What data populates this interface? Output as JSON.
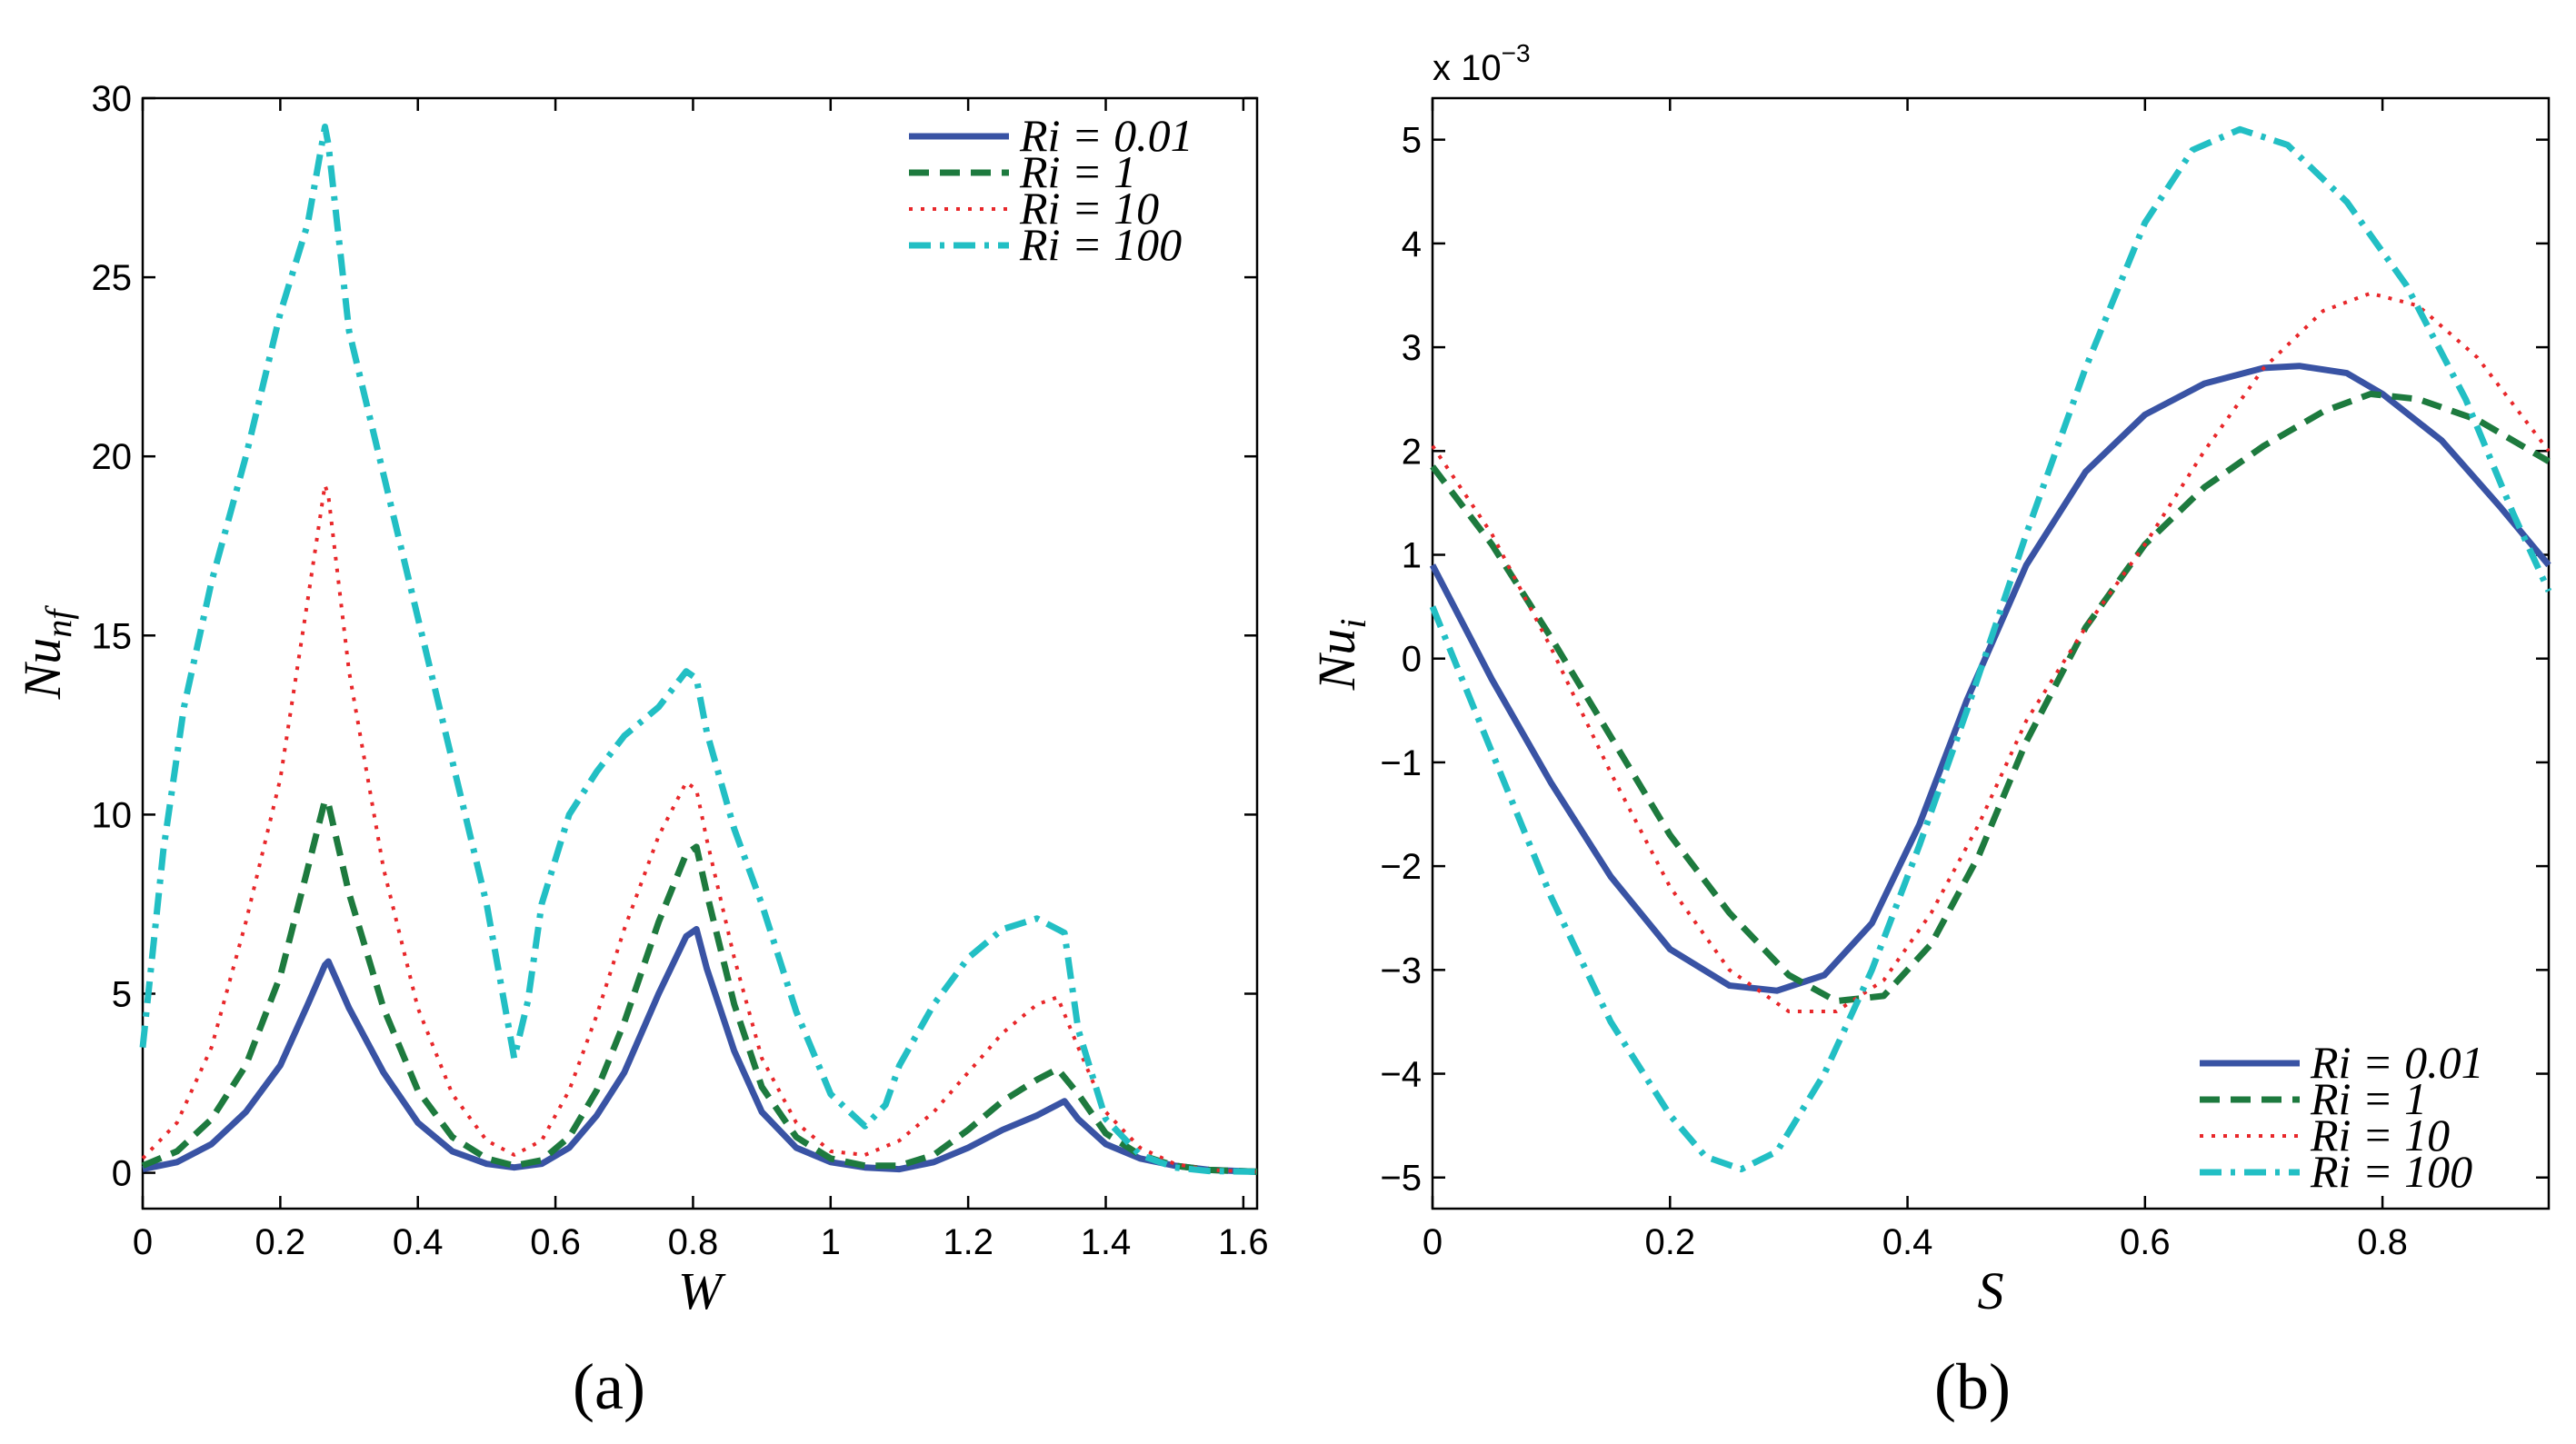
{
  "chart_data": [
    {
      "type": "line",
      "id": "a",
      "caption": "(a)",
      "xlabel": "W",
      "ylabel_main": "Nu",
      "ylabel_sub": "nf",
      "xlim": [
        0,
        1.62
      ],
      "ylim": [
        -1,
        30
      ],
      "xticks": [
        0,
        0.2,
        0.4,
        0.6,
        0.8,
        1,
        1.2,
        1.4,
        1.6
      ],
      "xtick_labels": [
        "0",
        "0.2",
        "0.4",
        "0.6",
        "0.8",
        "1",
        "1.2",
        "1.4",
        "1.6"
      ],
      "yticks": [
        0,
        5,
        10,
        15,
        20,
        25,
        30
      ],
      "ytick_labels": [
        "0",
        "5",
        "10",
        "15",
        "20",
        "25",
        "30"
      ],
      "legend_position": "top-right",
      "series": [
        {
          "name": "Ri = 0.01",
          "color": "#3953a4",
          "dash": "solid",
          "x": [
            0,
            0.05,
            0.1,
            0.15,
            0.2,
            0.24,
            0.265,
            0.27,
            0.3,
            0.35,
            0.4,
            0.45,
            0.5,
            0.54,
            0.58,
            0.62,
            0.66,
            0.7,
            0.75,
            0.79,
            0.805,
            0.82,
            0.86,
            0.9,
            0.95,
            1,
            1.05,
            1.1,
            1.15,
            1.2,
            1.25,
            1.3,
            1.34,
            1.36,
            1.4,
            1.45,
            1.5,
            1.55,
            1.62
          ],
          "y": [
            0.1,
            0.3,
            0.8,
            1.7,
            3,
            4.7,
            5.8,
            5.9,
            4.6,
            2.8,
            1.4,
            0.6,
            0.25,
            0.15,
            0.25,
            0.7,
            1.6,
            2.8,
            5,
            6.6,
            6.8,
            5.7,
            3.4,
            1.7,
            0.7,
            0.3,
            0.15,
            0.1,
            0.3,
            0.7,
            1.2,
            1.6,
            2,
            1.5,
            0.8,
            0.4,
            0.2,
            0.08,
            0.03
          ]
        },
        {
          "name": "Ri = 1",
          "color": "#1d7a3e",
          "dash": "dashed",
          "x": [
            0,
            0.05,
            0.1,
            0.15,
            0.2,
            0.24,
            0.265,
            0.27,
            0.3,
            0.35,
            0.4,
            0.45,
            0.5,
            0.54,
            0.58,
            0.62,
            0.66,
            0.7,
            0.75,
            0.79,
            0.805,
            0.82,
            0.86,
            0.9,
            0.95,
            1,
            1.05,
            1.1,
            1.15,
            1.2,
            1.25,
            1.3,
            1.33,
            1.36,
            1.4,
            1.45,
            1.5,
            1.55,
            1.62
          ],
          "y": [
            0.2,
            0.6,
            1.5,
            3,
            5.5,
            8.5,
            10.4,
            10.3,
            7.8,
            4.6,
            2.3,
            1,
            0.4,
            0.2,
            0.35,
            1,
            2.3,
            4.2,
            7,
            8.9,
            9.1,
            7.8,
            4.7,
            2.4,
            1,
            0.4,
            0.2,
            0.2,
            0.5,
            1.2,
            2,
            2.6,
            2.9,
            2.2,
            1.1,
            0.5,
            0.2,
            0.08,
            0.03
          ]
        },
        {
          "name": "Ri = 10",
          "color": "#e8272a",
          "dash": "dotted",
          "x": [
            0,
            0.05,
            0.1,
            0.15,
            0.2,
            0.24,
            0.265,
            0.27,
            0.3,
            0.35,
            0.4,
            0.45,
            0.5,
            0.54,
            0.58,
            0.62,
            0.66,
            0.7,
            0.75,
            0.79,
            0.805,
            0.82,
            0.86,
            0.9,
            0.95,
            1,
            1.05,
            1.1,
            1.15,
            1.2,
            1.25,
            1.3,
            1.33,
            1.36,
            1.4,
            1.45,
            1.5,
            1.55,
            1.62
          ],
          "y": [
            0.4,
            1.4,
            3.5,
            7,
            11,
            16,
            19.2,
            18.9,
            14,
            8.5,
            4.6,
            2.2,
            0.9,
            0.5,
            0.9,
            2.3,
            4.4,
            6.8,
            9.4,
            10.9,
            10.7,
            9.3,
            6,
            3.2,
            1.4,
            0.6,
            0.5,
            0.9,
            1.7,
            2.8,
            3.9,
            4.7,
            4.9,
            3.5,
            1.7,
            0.7,
            0.25,
            0.08,
            0.03
          ]
        },
        {
          "name": "Ri = 100",
          "color": "#22bfc4",
          "dash": "dashdot",
          "x": [
            0,
            0.03,
            0.06,
            0.1,
            0.15,
            0.2,
            0.24,
            0.265,
            0.27,
            0.3,
            0.35,
            0.4,
            0.45,
            0.5,
            0.54,
            0.56,
            0.58,
            0.62,
            0.66,
            0.7,
            0.75,
            0.79,
            0.805,
            0.82,
            0.86,
            0.9,
            0.95,
            1,
            1.05,
            1.08,
            1.1,
            1.15,
            1.2,
            1.25,
            1.3,
            1.34,
            1.36,
            1.4,
            1.45,
            1.5,
            1.55,
            1.62
          ],
          "y": [
            3.5,
            9,
            13,
            16.5,
            20,
            24,
            26.5,
            29.2,
            28.7,
            23.5,
            19.5,
            15.5,
            11.5,
            7.5,
            3.2,
            4.8,
            7.5,
            10,
            11.2,
            12.2,
            13,
            14,
            13.8,
            12.3,
            9.6,
            7.5,
            4.5,
            2.2,
            1.3,
            1.9,
            3,
            4.7,
            6,
            6.8,
            7.1,
            6.7,
            4,
            1.5,
            0.5,
            0.15,
            0.05,
            0.03
          ]
        }
      ]
    },
    {
      "type": "line",
      "id": "b",
      "caption": "(b)",
      "xlabel": "S",
      "ylabel_main": "Nu",
      "ylabel_sub": "i",
      "multiplier_label": "x 10",
      "multiplier_exp": "−3",
      "xlim": [
        0,
        0.94
      ],
      "ylim": [
        -5.3,
        5.4
      ],
      "xticks": [
        0,
        0.2,
        0.4,
        0.6,
        0.8
      ],
      "xtick_labels": [
        "0",
        "0.2",
        "0.4",
        "0.6",
        "0.8"
      ],
      "yticks": [
        -5,
        -4,
        -3,
        -2,
        -1,
        0,
        1,
        2,
        3,
        4,
        5
      ],
      "ytick_labels": [
        "−5",
        "−4",
        "−3",
        "−2",
        "−1",
        "0",
        "1",
        "2",
        "3",
        "4",
        "5"
      ],
      "legend_position": "bottom-right",
      "series": [
        {
          "name": "Ri = 0.01",
          "color": "#3953a4",
          "dash": "solid",
          "x": [
            0,
            0.05,
            0.1,
            0.15,
            0.2,
            0.25,
            0.29,
            0.33,
            0.37,
            0.41,
            0.45,
            0.5,
            0.55,
            0.6,
            0.65,
            0.7,
            0.73,
            0.77,
            0.8,
            0.85,
            0.9,
            0.94
          ],
          "y": [
            0.9,
            -0.2,
            -1.2,
            -2.1,
            -2.8,
            -3.15,
            -3.2,
            -3.05,
            -2.55,
            -1.6,
            -0.4,
            0.9,
            1.8,
            2.35,
            2.65,
            2.8,
            2.82,
            2.75,
            2.55,
            2.1,
            1.45,
            0.9
          ]
        },
        {
          "name": "Ri = 1",
          "color": "#1d7a3e",
          "dash": "dashed",
          "x": [
            0,
            0.05,
            0.1,
            0.15,
            0.2,
            0.25,
            0.3,
            0.34,
            0.38,
            0.42,
            0.46,
            0.5,
            0.55,
            0.6,
            0.65,
            0.7,
            0.75,
            0.79,
            0.83,
            0.88,
            0.94
          ],
          "y": [
            1.85,
            1.1,
            0.2,
            -0.75,
            -1.7,
            -2.45,
            -3.05,
            -3.3,
            -3.25,
            -2.75,
            -1.9,
            -0.8,
            0.3,
            1.1,
            1.65,
            2.05,
            2.38,
            2.55,
            2.5,
            2.3,
            1.9
          ]
        },
        {
          "name": "Ri = 10",
          "color": "#e8272a",
          "dash": "dotted",
          "x": [
            0,
            0.05,
            0.1,
            0.15,
            0.2,
            0.25,
            0.3,
            0.34,
            0.38,
            0.42,
            0.46,
            0.5,
            0.55,
            0.6,
            0.65,
            0.7,
            0.75,
            0.79,
            0.83,
            0.88,
            0.94
          ],
          "y": [
            2.05,
            1.2,
            0.1,
            -1.1,
            -2.2,
            -3.0,
            -3.4,
            -3.4,
            -3.1,
            -2.45,
            -1.6,
            -0.6,
            0.3,
            1.1,
            2.0,
            2.8,
            3.35,
            3.52,
            3.4,
            2.9,
            2.0
          ]
        },
        {
          "name": "Ri = 100",
          "color": "#22bfc4",
          "dash": "dashdot",
          "x": [
            0,
            0.05,
            0.1,
            0.15,
            0.2,
            0.23,
            0.26,
            0.29,
            0.33,
            0.37,
            0.41,
            0.45,
            0.5,
            0.55,
            0.6,
            0.64,
            0.68,
            0.72,
            0.77,
            0.82,
            0.87,
            0.91,
            0.94
          ],
          "y": [
            0.5,
            -0.9,
            -2.3,
            -3.5,
            -4.4,
            -4.8,
            -4.92,
            -4.75,
            -4.0,
            -3.0,
            -1.8,
            -0.5,
            1.2,
            2.8,
            4.2,
            4.9,
            5.1,
            4.95,
            4.4,
            3.6,
            2.5,
            1.4,
            0.65
          ]
        }
      ]
    }
  ]
}
